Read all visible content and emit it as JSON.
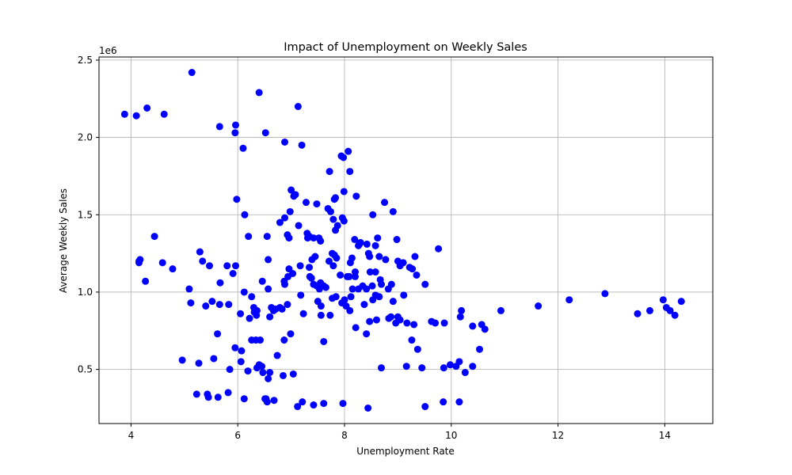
{
  "chart_data": {
    "type": "scatter",
    "title": "Impact of Unemployment on Weekly Sales",
    "xlabel": "Unemployment Rate",
    "ylabel": "Average Weekly Sales",
    "y_offset_label": "1e6",
    "xlim": [
      3.4,
      14.9
    ],
    "ylim": [
      0.15,
      2.52
    ],
    "x_ticks": [
      4,
      6,
      8,
      10,
      12,
      14
    ],
    "x_tick_labels": [
      "4",
      "6",
      "8",
      "10",
      "12",
      "14"
    ],
    "y_ticks": [
      0.5,
      1.0,
      1.5,
      2.0,
      2.5
    ],
    "y_tick_labels": [
      "0.5",
      "1.0",
      "1.5",
      "2.0",
      "2.5"
    ],
    "grid": true,
    "marker_color": "#0000ff",
    "points": [
      [
        3.88,
        2.15
      ],
      [
        4.1,
        2.14
      ],
      [
        4.3,
        2.19
      ],
      [
        4.62,
        2.15
      ],
      [
        5.14,
        2.42
      ],
      [
        6.4,
        2.29
      ],
      [
        7.13,
        2.2
      ],
      [
        5.66,
        2.07
      ],
      [
        5.96,
        2.08
      ],
      [
        5.95,
        2.03
      ],
      [
        6.1,
        1.93
      ],
      [
        6.52,
        2.03
      ],
      [
        6.88,
        1.97
      ],
      [
        7.2,
        1.95
      ],
      [
        7.0,
        1.66
      ],
      [
        7.05,
        1.62
      ],
      [
        7.08,
        1.63
      ],
      [
        7.28,
        1.58
      ],
      [
        7.48,
        1.57
      ],
      [
        5.98,
        1.6
      ],
      [
        6.13,
        1.5
      ],
      [
        6.88,
        1.48
      ],
      [
        6.98,
        1.52
      ],
      [
        6.79,
        1.45
      ],
      [
        7.14,
        1.43
      ],
      [
        7.3,
        1.38
      ],
      [
        7.34,
        1.36
      ],
      [
        7.42,
        1.35
      ],
      [
        7.52,
        1.35
      ],
      [
        7.55,
        1.33
      ],
      [
        7.31,
        1.35
      ],
      [
        6.93,
        1.37
      ],
      [
        6.96,
        1.35
      ],
      [
        6.55,
        1.36
      ],
      [
        6.2,
        1.36
      ],
      [
        7.69,
        1.54
      ],
      [
        7.74,
        1.52
      ],
      [
        7.81,
        1.6
      ],
      [
        7.83,
        1.61
      ],
      [
        7.79,
        1.47
      ],
      [
        7.83,
        1.4
      ],
      [
        7.87,
        1.43
      ],
      [
        7.96,
        1.48
      ],
      [
        7.99,
        1.46
      ],
      [
        7.99,
        1.65
      ],
      [
        7.72,
        1.78
      ],
      [
        7.94,
        1.88
      ],
      [
        7.98,
        1.87
      ],
      [
        8.07,
        1.91
      ],
      [
        8.1,
        1.78
      ],
      [
        8.22,
        1.62
      ],
      [
        8.26,
        1.3
      ],
      [
        8.28,
        1.31
      ],
      [
        8.19,
        1.34
      ],
      [
        8.3,
        1.32
      ],
      [
        8.42,
        1.31
      ],
      [
        8.45,
        1.25
      ],
      [
        8.47,
        1.23
      ],
      [
        8.53,
        1.5
      ],
      [
        8.58,
        1.3
      ],
      [
        8.62,
        1.35
      ],
      [
        8.75,
        1.58
      ],
      [
        8.91,
        1.52
      ],
      [
        8.98,
        1.34
      ],
      [
        7.39,
        1.21
      ],
      [
        7.45,
        1.23
      ],
      [
        7.34,
        1.16
      ],
      [
        7.35,
        1.1
      ],
      [
        7.38,
        1.09
      ],
      [
        7.42,
        1.05
      ],
      [
        7.48,
        1.04
      ],
      [
        7.53,
        1.02
      ],
      [
        7.55,
        1.06
      ],
      [
        7.61,
        1.04
      ],
      [
        7.65,
        1.03
      ],
      [
        7.71,
        1.2
      ],
      [
        7.77,
        1.25
      ],
      [
        7.81,
        1.24
      ],
      [
        7.85,
        1.22
      ],
      [
        7.79,
        1.17
      ],
      [
        7.92,
        1.11
      ],
      [
        8.05,
        1.1
      ],
      [
        8.09,
        1.1
      ],
      [
        8.11,
        1.19
      ],
      [
        8.14,
        1.22
      ],
      [
        8.2,
        1.13
      ],
      [
        8.2,
        1.1
      ],
      [
        8.15,
        1.02
      ],
      [
        8.26,
        1.02
      ],
      [
        8.34,
        1.04
      ],
      [
        8.41,
        1.02
      ],
      [
        8.48,
        1.13
      ],
      [
        8.52,
        1.04
      ],
      [
        8.58,
        1.13
      ],
      [
        8.65,
        1.23
      ],
      [
        8.67,
        1.08
      ],
      [
        8.69,
        1.05
      ],
      [
        8.77,
        1.21
      ],
      [
        8.82,
        1.02
      ],
      [
        8.88,
        1.05
      ],
      [
        9.0,
        1.2
      ],
      [
        9.04,
        1.17
      ],
      [
        9.1,
        1.19
      ],
      [
        9.22,
        1.16
      ],
      [
        9.27,
        1.15
      ],
      [
        9.32,
        1.23
      ],
      [
        9.35,
        1.11
      ],
      [
        9.51,
        1.05
      ],
      [
        9.76,
        1.28
      ],
      [
        7.17,
        1.17
      ],
      [
        6.96,
        1.15
      ],
      [
        6.94,
        1.1
      ],
      [
        7.03,
        1.12
      ],
      [
        6.87,
        1.07
      ],
      [
        6.88,
        1.05
      ],
      [
        6.46,
        1.07
      ],
      [
        6.57,
        1.21
      ],
      [
        6.57,
        1.02
      ],
      [
        6.12,
        1.0
      ],
      [
        5.96,
        1.17
      ],
      [
        5.8,
        1.17
      ],
      [
        5.91,
        1.12
      ],
      [
        5.67,
        1.06
      ],
      [
        5.47,
        1.17
      ],
      [
        5.34,
        1.2
      ],
      [
        5.29,
        1.26
      ],
      [
        5.09,
        1.02
      ],
      [
        5.12,
        0.93
      ],
      [
        5.4,
        0.91
      ],
      [
        5.52,
        0.94
      ],
      [
        5.66,
        0.92
      ],
      [
        5.83,
        0.92
      ],
      [
        6.05,
        0.86
      ],
      [
        6.22,
        0.83
      ],
      [
        6.26,
        0.97
      ],
      [
        6.3,
        0.9
      ],
      [
        6.31,
        0.87
      ],
      [
        6.36,
        0.88
      ],
      [
        6.35,
        0.85
      ],
      [
        6.6,
        0.84
      ],
      [
        6.67,
        0.88
      ],
      [
        6.71,
        0.89
      ],
      [
        6.79,
        0.9
      ],
      [
        6.83,
        0.89
      ],
      [
        6.93,
        0.92
      ],
      [
        6.63,
        0.9
      ],
      [
        7.23,
        0.86
      ],
      [
        7.18,
        0.98
      ],
      [
        7.5,
        0.94
      ],
      [
        7.56,
        0.91
      ],
      [
        7.56,
        0.85
      ],
      [
        7.73,
        0.85
      ],
      [
        7.77,
        0.96
      ],
      [
        7.84,
        0.97
      ],
      [
        7.95,
        0.93
      ],
      [
        8.0,
        0.95
      ],
      [
        8.03,
        0.91
      ],
      [
        8.1,
        0.88
      ],
      [
        8.12,
        0.97
      ],
      [
        8.21,
        0.77
      ],
      [
        8.37,
        0.92
      ],
      [
        8.41,
        0.73
      ],
      [
        8.47,
        0.81
      ],
      [
        8.53,
        0.95
      ],
      [
        8.58,
        0.98
      ],
      [
        8.6,
        0.82
      ],
      [
        8.65,
        0.97
      ],
      [
        8.83,
        0.83
      ],
      [
        8.87,
        0.84
      ],
      [
        8.91,
        0.94
      ],
      [
        8.96,
        0.8
      ],
      [
        9.0,
        0.84
      ],
      [
        9.04,
        0.82
      ],
      [
        9.11,
        0.98
      ],
      [
        9.17,
        0.8
      ],
      [
        9.3,
        0.79
      ],
      [
        9.26,
        0.69
      ],
      [
        9.37,
        0.63
      ],
      [
        9.63,
        0.81
      ],
      [
        9.7,
        0.8
      ],
      [
        9.87,
        0.8
      ],
      [
        10.17,
        0.84
      ],
      [
        10.19,
        0.88
      ],
      [
        10.4,
        0.78
      ],
      [
        10.57,
        0.79
      ],
      [
        10.63,
        0.76
      ],
      [
        10.53,
        0.63
      ],
      [
        10.93,
        0.88
      ],
      [
        11.63,
        0.91
      ],
      [
        12.21,
        0.95
      ],
      [
        12.88,
        0.99
      ],
      [
        13.49,
        0.86
      ],
      [
        13.72,
        0.88
      ],
      [
        13.97,
        0.95
      ],
      [
        14.03,
        0.9
      ],
      [
        14.1,
        0.88
      ],
      [
        14.19,
        0.85
      ],
      [
        14.31,
        0.94
      ],
      [
        4.15,
        1.2
      ],
      [
        4.17,
        1.21
      ],
      [
        4.15,
        1.19
      ],
      [
        4.44,
        1.36
      ],
      [
        4.59,
        1.19
      ],
      [
        4.78,
        1.15
      ],
      [
        4.27,
        1.07
      ],
      [
        4.96,
        0.56
      ],
      [
        5.27,
        0.54
      ],
      [
        5.55,
        0.57
      ],
      [
        5.62,
        0.73
      ],
      [
        5.85,
        0.5
      ],
      [
        5.95,
        0.64
      ],
      [
        6.07,
        0.62
      ],
      [
        6.06,
        0.55
      ],
      [
        6.19,
        0.49
      ],
      [
        6.26,
        0.69
      ],
      [
        6.34,
        0.69
      ],
      [
        6.42,
        0.69
      ],
      [
        6.36,
        0.51
      ],
      [
        6.4,
        0.53
      ],
      [
        6.45,
        0.52
      ],
      [
        6.47,
        0.48
      ],
      [
        6.6,
        0.48
      ],
      [
        6.57,
        0.44
      ],
      [
        6.74,
        0.59
      ],
      [
        6.87,
        0.69
      ],
      [
        6.85,
        0.46
      ],
      [
        6.99,
        0.73
      ],
      [
        7.04,
        0.47
      ],
      [
        7.61,
        0.68
      ],
      [
        8.69,
        0.51
      ],
      [
        9.16,
        0.52
      ],
      [
        9.45,
        0.51
      ],
      [
        9.86,
        0.51
      ],
      [
        9.98,
        0.53
      ],
      [
        10.09,
        0.52
      ],
      [
        10.15,
        0.55
      ],
      [
        10.26,
        0.48
      ],
      [
        10.4,
        0.52
      ],
      [
        5.23,
        0.34
      ],
      [
        5.43,
        0.34
      ],
      [
        5.45,
        0.32
      ],
      [
        5.63,
        0.32
      ],
      [
        5.82,
        0.35
      ],
      [
        6.12,
        0.31
      ],
      [
        6.53,
        0.31
      ],
      [
        6.55,
        0.29
      ],
      [
        6.68,
        0.3
      ],
      [
        6.51,
        0.31
      ],
      [
        7.12,
        0.26
      ],
      [
        7.21,
        0.29
      ],
      [
        7.42,
        0.27
      ],
      [
        7.61,
        0.28
      ],
      [
        7.97,
        0.28
      ],
      [
        8.44,
        0.25
      ],
      [
        9.51,
        0.26
      ],
      [
        9.85,
        0.29
      ],
      [
        10.15,
        0.29
      ]
    ]
  }
}
